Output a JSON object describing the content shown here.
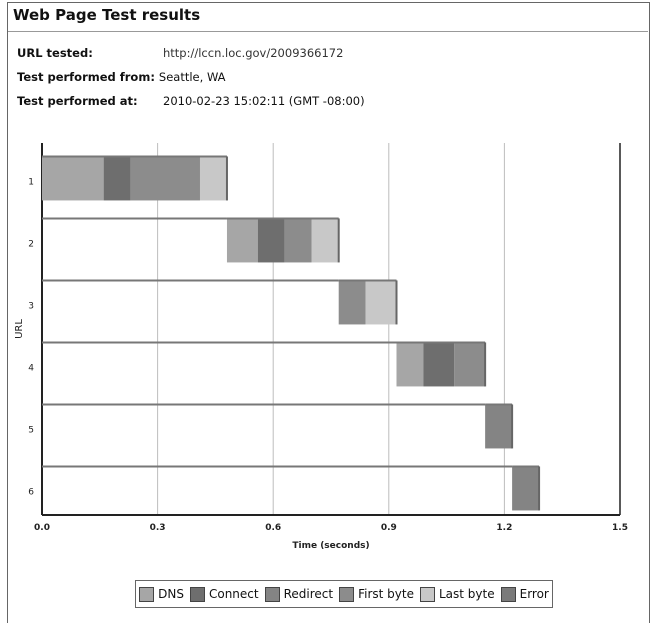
{
  "page": {
    "title": "Web Page Test results",
    "url_label": "URL tested:",
    "url_value": "http://lccn.loc.gov/2009366172",
    "from_label": "Test performed from:",
    "from_value": "Seattle, WA",
    "at_label": "Test performed at:",
    "at_value": "2010-02-23 15:02:11 (GMT -08:00)"
  },
  "chart_data": {
    "type": "bar",
    "orientation": "horizontal-stacked-waterfall",
    "xlabel": "Time (seconds)",
    "ylabel": "URL",
    "xlim": [
      0,
      1.5
    ],
    "xticks": [
      "0.0",
      "0.3",
      "0.6",
      "0.9",
      "1.2",
      "1.5"
    ],
    "categories": [
      "1",
      "2",
      "3",
      "4",
      "5",
      "6"
    ],
    "grid": true,
    "legend_position": "bottom-center",
    "segment_colors": {
      "DNS": "#a6a6a6",
      "Connect": "#6e6e6e",
      "Redirect": "#848484",
      "First byte": "#8c8c8c",
      "Last byte": "#c8c8c8",
      "Error": "#7a7a7a"
    },
    "series": [
      {
        "name": "DNS",
        "starts": [
          0.0,
          0.48,
          null,
          0.92,
          null,
          null
        ],
        "ends": [
          0.16,
          0.56,
          null,
          0.99,
          null,
          null
        ]
      },
      {
        "name": "Connect",
        "starts": [
          0.16,
          0.56,
          null,
          0.99,
          null,
          null
        ],
        "ends": [
          0.23,
          0.63,
          null,
          1.07,
          null,
          null
        ]
      },
      {
        "name": "Redirect",
        "starts": [
          null,
          null,
          null,
          null,
          1.15,
          1.22
        ],
        "ends": [
          null,
          null,
          null,
          null,
          1.22,
          1.29
        ]
      },
      {
        "name": "First byte",
        "starts": [
          0.23,
          0.63,
          0.77,
          1.07,
          null,
          null
        ],
        "ends": [
          0.41,
          0.7,
          0.84,
          1.15,
          null,
          null
        ]
      },
      {
        "name": "Last byte",
        "starts": [
          0.41,
          0.7,
          0.84,
          null,
          null,
          null
        ],
        "ends": [
          0.48,
          0.77,
          0.92,
          null,
          null,
          null
        ]
      },
      {
        "name": "Error",
        "starts": [
          null,
          null,
          null,
          null,
          null,
          null
        ],
        "ends": [
          null,
          null,
          null,
          null,
          null,
          null
        ]
      }
    ]
  }
}
